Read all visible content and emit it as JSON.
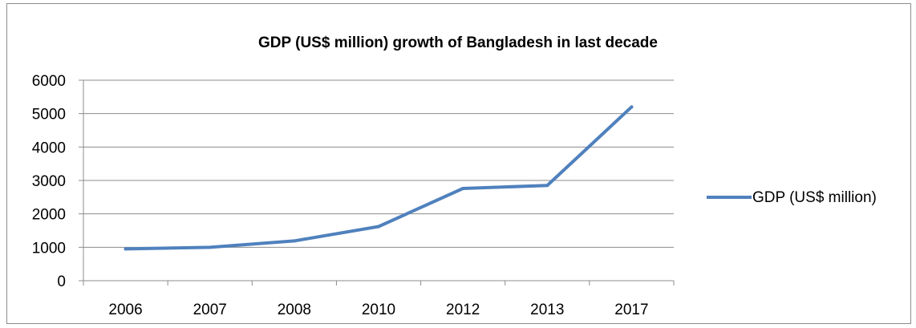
{
  "chart_data": {
    "type": "line",
    "title": "GDP (US$ million) growth of Bangladesh in last decade",
    "categories": [
      "2006",
      "2007",
      "2008",
      "2010",
      "2012",
      "2013",
      "2017"
    ],
    "series": [
      {
        "name": "GDP (US$ million)",
        "values": [
          950,
          1000,
          1190,
          1620,
          2760,
          2850,
          5200
        ],
        "color": "#4f81bd"
      }
    ],
    "ylim": [
      0,
      6000
    ],
    "yticks": [
      0,
      1000,
      2000,
      3000,
      4000,
      5000,
      6000
    ],
    "grid": true,
    "legend": "right"
  }
}
